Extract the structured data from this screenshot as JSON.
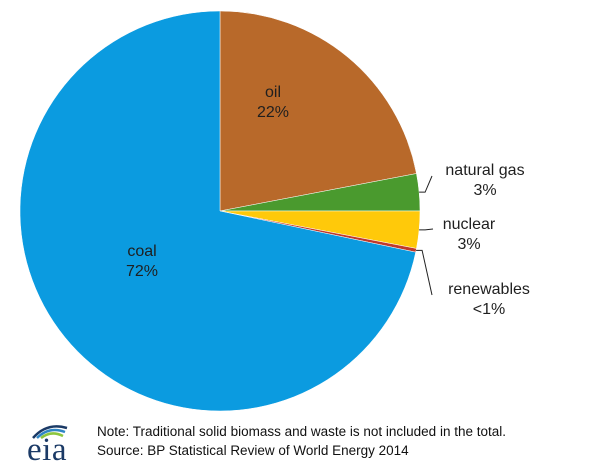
{
  "chart_data": {
    "type": "pie",
    "title": "",
    "slices": [
      {
        "label": "oil",
        "percent_label": "22%",
        "value": 22,
        "color": "#b8692a"
      },
      {
        "label": "natural gas",
        "percent_label": "3%",
        "value": 3,
        "color": "#4a9a2e"
      },
      {
        "label": "nuclear",
        "percent_label": "3%",
        "value": 3,
        "color": "#ffc90a"
      },
      {
        "label": "renewables",
        "percent_label": "<1%",
        "value": 0.3,
        "color": "#c0392b"
      },
      {
        "label": "coal",
        "percent_label": "72%",
        "value": 71.7,
        "color": "#0b9be0"
      }
    ],
    "start_angle_deg": 0,
    "direction": "clockwise"
  },
  "notes": {
    "line1": "Note: Traditional  solid biomass and waste is not included in the total.",
    "line2": "Source: BP Statistical Review of World Energy 2014"
  },
  "logo": {
    "text": "eia",
    "colors": [
      "#1b3a66",
      "#2f86c5",
      "#8cc63f"
    ]
  }
}
